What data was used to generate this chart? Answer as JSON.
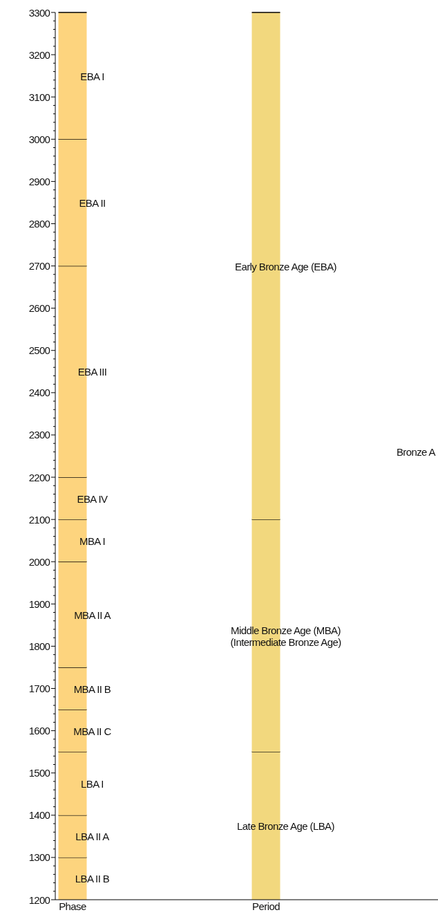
{
  "chart_data": {
    "type": "bar",
    "categories": [
      "Phase",
      "Period"
    ],
    "ylim": [
      1200,
      3300
    ],
    "yticks": [
      1200,
      {
        "value": 1220,
        "label": null
      },
      {
        "value": 1240,
        "label": null
      },
      {
        "value": 1260,
        "label": null
      },
      {
        "value": 1280,
        "label": null
      },
      1300,
      {
        "value": 1320,
        "label": null
      },
      {
        "value": 1340,
        "label": null
      },
      {
        "value": 1360,
        "label": null
      },
      {
        "value": 1380,
        "label": null
      },
      1400,
      {
        "value": 1420,
        "label": null
      },
      {
        "value": 1440,
        "label": null
      },
      {
        "value": 1460,
        "label": null
      },
      {
        "value": 1480,
        "label": null
      },
      1500,
      {
        "value": 1520,
        "label": null
      },
      {
        "value": 1540,
        "label": null
      },
      {
        "value": 1560,
        "label": null
      },
      {
        "value": 1580,
        "label": null
      },
      1600,
      {
        "value": 1620,
        "label": null
      },
      {
        "value": 1640,
        "label": null
      },
      {
        "value": 1660,
        "label": null
      },
      {
        "value": 1680,
        "label": null
      },
      1700,
      {
        "value": 1720,
        "label": null
      },
      {
        "value": 1740,
        "label": null
      },
      {
        "value": 1760,
        "label": null
      },
      {
        "value": 1780,
        "label": null
      },
      1800,
      {
        "value": 1820,
        "label": null
      },
      {
        "value": 1840,
        "label": null
      },
      {
        "value": 1860,
        "label": null
      },
      {
        "value": 1880,
        "label": null
      },
      1900,
      {
        "value": 1920,
        "label": null
      },
      {
        "value": 1940,
        "label": null
      },
      {
        "value": 1960,
        "label": null
      },
      {
        "value": 1980,
        "label": null
      },
      2000,
      {
        "value": 2020,
        "label": null
      },
      {
        "value": 2040,
        "label": null
      },
      {
        "value": 2060,
        "label": null
      },
      {
        "value": 2080,
        "label": null
      },
      2100,
      {
        "value": 2120,
        "label": null
      },
      {
        "value": 2140,
        "label": null
      },
      {
        "value": 2160,
        "label": null
      },
      {
        "value": 2180,
        "label": null
      },
      2200,
      {
        "value": 2220,
        "label": null
      },
      {
        "value": 2240,
        "label": null
      },
      {
        "value": 2260,
        "label": null
      },
      {
        "value": 2280,
        "label": null
      },
      2300,
      {
        "value": 2320,
        "label": null
      },
      {
        "value": 2340,
        "label": null
      },
      {
        "value": 2360,
        "label": null
      },
      {
        "value": 2380,
        "label": null
      },
      2400,
      {
        "value": 2420,
        "label": null
      },
      {
        "value": 2440,
        "label": null
      },
      {
        "value": 2460,
        "label": null
      },
      {
        "value": 2480,
        "label": null
      },
      2500,
      {
        "value": 2520,
        "label": null
      },
      {
        "value": 2540,
        "label": null
      },
      {
        "value": 2560,
        "label": null
      },
      {
        "value": 2580,
        "label": null
      },
      2600,
      {
        "value": 2620,
        "label": null
      },
      {
        "value": 2640,
        "label": null
      },
      {
        "value": 2660,
        "label": null
      },
      {
        "value": 2680,
        "label": null
      },
      2700,
      {
        "value": 2720,
        "label": null
      },
      {
        "value": 2740,
        "label": null
      },
      {
        "value": 2760,
        "label": null
      },
      {
        "value": 2780,
        "label": null
      },
      2800,
      {
        "value": 2820,
        "label": null
      },
      {
        "value": 2840,
        "label": null
      },
      {
        "value": 2860,
        "label": null
      },
      {
        "value": 2880,
        "label": null
      },
      2900,
      {
        "value": 2920,
        "label": null
      },
      {
        "value": 2940,
        "label": null
      },
      {
        "value": 2960,
        "label": null
      },
      {
        "value": 2980,
        "label": null
      },
      3000,
      {
        "value": 3020,
        "label": null
      },
      {
        "value": 3040,
        "label": null
      },
      {
        "value": 3060,
        "label": null
      },
      {
        "value": 3080,
        "label": null
      },
      3100,
      {
        "value": 3120,
        "label": null
      },
      {
        "value": 3140,
        "label": null
      },
      {
        "value": 3160,
        "label": null
      },
      {
        "value": 3180,
        "label": null
      },
      3200,
      {
        "value": 3220,
        "label": null
      },
      {
        "value": 3240,
        "label": null
      },
      {
        "value": 3260,
        "label": null
      },
      {
        "value": 3280,
        "label": null
      },
      3300
    ],
    "series": [
      {
        "colors": [
          "#fdd47e",
          "#f2d87e"
        ],
        "base": [
          1200,
          1200
        ],
        "values": [
          100,
          350
        ],
        "value_labels": [
          "LBA II B",
          "Late Bronze Age (LBA)"
        ]
      },
      {
        "colors": [
          "#fdd47e",
          "#f2d87e"
        ],
        "base": [
          1300,
          1550
        ],
        "values": [
          100,
          550
        ],
        "value_labels": [
          "LBA II A",
          "Middle Bronze Age (MBA)\n(Intermediate Bronze Age)"
        ]
      },
      {
        "colors": [
          "#fdd47e",
          "#f2d87e"
        ],
        "base": [
          1400,
          2100
        ],
        "values": [
          150,
          1200
        ],
        "value_labels": [
          "LBA I",
          "Early Bronze Age (EBA)"
        ]
      },
      {
        "colors": [
          "#fdd47e",
          null
        ],
        "base": [
          1550,
          null
        ],
        "values": [
          100,
          null
        ],
        "value_labels": [
          "MBA II C",
          null
        ]
      },
      {
        "colors": [
          "#fdd47e",
          null
        ],
        "base": [
          1650,
          null
        ],
        "values": [
          100,
          null
        ],
        "value_labels": [
          "MBA II B",
          null
        ]
      },
      {
        "colors": [
          "#fdd47e",
          null
        ],
        "base": [
          1750,
          null
        ],
        "values": [
          250,
          null
        ],
        "value_labels": [
          "MBA II A",
          null
        ]
      },
      {
        "colors": [
          "#fdd47e",
          null
        ],
        "base": [
          2000,
          null
        ],
        "values": [
          100,
          null
        ],
        "value_labels": [
          "MBA I",
          null
        ]
      },
      {
        "colors": [
          "#fdd47e",
          null
        ],
        "base": [
          2100,
          null
        ],
        "values": [
          100,
          null
        ],
        "value_labels": [
          "EBA IV",
          null
        ]
      },
      {
        "colors": [
          "#fdd47e",
          null
        ],
        "base": [
          2200,
          null
        ],
        "values": [
          500,
          null
        ],
        "value_labels": [
          "EBA III",
          null
        ]
      },
      {
        "colors": [
          "#fdd47e",
          null
        ],
        "base": [
          2700,
          null
        ],
        "values": [
          300,
          null
        ],
        "value_labels": [
          "EBA II",
          null
        ]
      },
      {
        "colors": [
          "#fdd47e",
          null
        ],
        "base": [
          3000,
          null
        ],
        "values": [
          300,
          null
        ],
        "value_labels": [
          "EBA I",
          null
        ]
      }
    ],
    "annotations": [
      "Bronze A"
    ]
  }
}
